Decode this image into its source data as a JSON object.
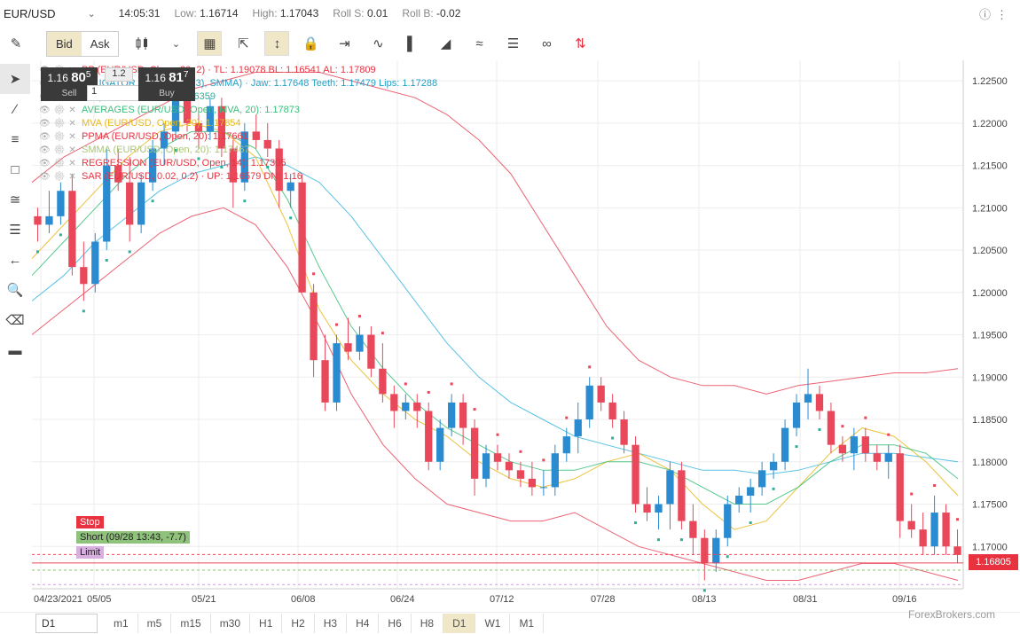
{
  "topbar": {
    "symbol": "EUR/USD",
    "time": "14:05:31",
    "low_label": "Low:",
    "low_value": "1.16714",
    "high_label": "High:",
    "high_value": "1.17043",
    "roll_s_label": "Roll S:",
    "roll_s_value": "0.01",
    "roll_b_label": "Roll B:",
    "roll_b_value": "-0.02"
  },
  "toolbar": {
    "bid_label": "Bid",
    "ask_label": "Ask"
  },
  "trade": {
    "sell_price_main": "1.16",
    "sell_price_big": "80",
    "sell_price_sup": "5",
    "sell_label": "Sell",
    "spread": "1.2",
    "qty": "1",
    "buy_price_main": "1.16",
    "buy_price_big": "81",
    "buy_price_sup": "7",
    "buy_label": "Buy"
  },
  "legend": [
    {
      "text": "PP (EUR/USD, Close, 20, 2) · TL: 1.19078 BL: 1.16541 AL: 1.17809",
      "color": "#e8323f"
    },
    {
      "text": "ALLIGATOR (13(8),8(5),5(3), SMMA) · Jaw: 1.17648 Teeth: 1.17479 Lips: 1.17288",
      "color": "#21a0c8"
    },
    {
      "text": "BB (EUR/USD, 20, 2): 1.16359",
      "color": "#2bb19a"
    },
    {
      "text": "AVERAGES (EUR/USD, Open, MVA, 20): 1.17873",
      "color": "#3ac07a"
    },
    {
      "text": "MVA (EUR/USD, Open, 20): 1.17854",
      "color": "#e7b81b"
    },
    {
      "text": "PPMA (EUR/USD, Open, 20): 1.17661",
      "color": "#e8323f"
    },
    {
      "text": "SMMA (EUR/USD, Open, 20): 1.17467",
      "color": "#a9c47b"
    },
    {
      "text": "REGRESSION (EUR/USD, Open, 14): 1.17305",
      "color": "#e8323f"
    },
    {
      "text": "SAR (EUR/USD, 0.02, 0.2) · UP: 1.16579 DN: 1.16",
      "color": "#e8323f"
    }
  ],
  "orders": {
    "stop_label": "Stop",
    "short_label": "Short (09/28 13:43, -7.7)",
    "limit_label": "Limit",
    "current_price": "1.16805"
  },
  "timeframes": {
    "selected": "D1",
    "items": [
      "m1",
      "m5",
      "m15",
      "m30",
      "H1",
      "H2",
      "H3",
      "H4",
      "H6",
      "H8",
      "D1",
      "W1",
      "M1"
    ]
  },
  "watermark": "ForexBrokers.com",
  "chart_data": {
    "type": "candlestick",
    "y_ticks": [
      "1.22500",
      "1.22000",
      "1.21500",
      "1.21000",
      "1.20500",
      "1.20000",
      "1.19500",
      "1.19000",
      "1.18500",
      "1.18000",
      "1.17500",
      "1.17000"
    ],
    "ylim": [
      1.165,
      1.227
    ],
    "x_ticks": [
      "04/23/2021",
      "05/05",
      "05/21",
      "06/08",
      "06/24",
      "07/12",
      "07/28",
      "08/13",
      "08/31",
      "09/16"
    ],
    "up_color": "#2a8bd0",
    "down_color": "#e8485a",
    "candles": [
      [
        1.209,
        1.21,
        1.206,
        1.208
      ],
      [
        1.208,
        1.212,
        1.207,
        1.209
      ],
      [
        1.209,
        1.213,
        1.208,
        1.212
      ],
      [
        1.212,
        1.214,
        1.202,
        1.203
      ],
      [
        1.203,
        1.206,
        1.199,
        1.201
      ],
      [
        1.201,
        1.207,
        1.2,
        1.206
      ],
      [
        1.206,
        1.217,
        1.205,
        1.215
      ],
      [
        1.215,
        1.217,
        1.212,
        1.213
      ],
      [
        1.213,
        1.216,
        1.206,
        1.208
      ],
      [
        1.208,
        1.214,
        1.207,
        1.213
      ],
      [
        1.213,
        1.218,
        1.212,
        1.217
      ],
      [
        1.217,
        1.22,
        1.215,
        1.219
      ],
      [
        1.219,
        1.224,
        1.218,
        1.223
      ],
      [
        1.223,
        1.224,
        1.219,
        1.22
      ],
      [
        1.22,
        1.221,
        1.217,
        1.219
      ],
      [
        1.219,
        1.223,
        1.218,
        1.222
      ],
      [
        1.222,
        1.223,
        1.216,
        1.217
      ],
      [
        1.217,
        1.218,
        1.21,
        1.213
      ],
      [
        1.213,
        1.22,
        1.212,
        1.219
      ],
      [
        1.219,
        1.221,
        1.217,
        1.218
      ],
      [
        1.218,
        1.22,
        1.216,
        1.217
      ],
      [
        1.217,
        1.218,
        1.21,
        1.212
      ],
      [
        1.212,
        1.214,
        1.21,
        1.213
      ],
      [
        1.213,
        1.214,
        1.2,
        1.2
      ],
      [
        1.2,
        1.201,
        1.19,
        1.192
      ],
      [
        1.192,
        1.195,
        1.186,
        1.187
      ],
      [
        1.187,
        1.195,
        1.186,
        1.194
      ],
      [
        1.194,
        1.197,
        1.192,
        1.193
      ],
      [
        1.193,
        1.196,
        1.192,
        1.195
      ],
      [
        1.195,
        1.196,
        1.19,
        1.191
      ],
      [
        1.191,
        1.194,
        1.187,
        1.188
      ],
      [
        1.188,
        1.189,
        1.184,
        1.186
      ],
      [
        1.186,
        1.188,
        1.185,
        1.187
      ],
      [
        1.187,
        1.188,
        1.184,
        1.186
      ],
      [
        1.186,
        1.187,
        1.179,
        1.18
      ],
      [
        1.18,
        1.185,
        1.179,
        1.184
      ],
      [
        1.184,
        1.188,
        1.183,
        1.187
      ],
      [
        1.187,
        1.188,
        1.182,
        1.184
      ],
      [
        1.184,
        1.185,
        1.176,
        1.178
      ],
      [
        1.178,
        1.182,
        1.177,
        1.181
      ],
      [
        1.181,
        1.182,
        1.179,
        1.18
      ],
      [
        1.18,
        1.181,
        1.178,
        1.179
      ],
      [
        1.179,
        1.18,
        1.177,
        1.178
      ],
      [
        1.178,
        1.18,
        1.176,
        1.177
      ],
      [
        1.177,
        1.179,
        1.176,
        1.177
      ],
      [
        1.177,
        1.182,
        1.176,
        1.181
      ],
      [
        1.181,
        1.184,
        1.18,
        1.183
      ],
      [
        1.183,
        1.187,
        1.181,
        1.185
      ],
      [
        1.185,
        1.19,
        1.184,
        1.189
      ],
      [
        1.189,
        1.19,
        1.186,
        1.187
      ],
      [
        1.187,
        1.188,
        1.184,
        1.185
      ],
      [
        1.185,
        1.186,
        1.181,
        1.182
      ],
      [
        1.182,
        1.183,
        1.174,
        1.175
      ],
      [
        1.175,
        1.177,
        1.173,
        1.174
      ],
      [
        1.174,
        1.176,
        1.172,
        1.175
      ],
      [
        1.175,
        1.18,
        1.172,
        1.179
      ],
      [
        1.179,
        1.18,
        1.172,
        1.173
      ],
      [
        1.173,
        1.175,
        1.169,
        1.171
      ],
      [
        1.171,
        1.172,
        1.166,
        1.168
      ],
      [
        1.168,
        1.172,
        1.167,
        1.171
      ],
      [
        1.171,
        1.176,
        1.17,
        1.175
      ],
      [
        1.175,
        1.177,
        1.174,
        1.176
      ],
      [
        1.176,
        1.178,
        1.174,
        1.177
      ],
      [
        1.177,
        1.18,
        1.176,
        1.179
      ],
      [
        1.179,
        1.181,
        1.178,
        1.18
      ],
      [
        1.18,
        1.185,
        1.179,
        1.184
      ],
      [
        1.184,
        1.188,
        1.183,
        1.187
      ],
      [
        1.187,
        1.191,
        1.185,
        1.188
      ],
      [
        1.188,
        1.189,
        1.185,
        1.186
      ],
      [
        1.186,
        1.187,
        1.181,
        1.182
      ],
      [
        1.182,
        1.183,
        1.18,
        1.181
      ],
      [
        1.181,
        1.184,
        1.179,
        1.183
      ],
      [
        1.183,
        1.184,
        1.18,
        1.181
      ],
      [
        1.181,
        1.182,
        1.179,
        1.18
      ],
      [
        1.18,
        1.182,
        1.178,
        1.181
      ],
      [
        1.181,
        1.182,
        1.171,
        1.173
      ],
      [
        1.173,
        1.175,
        1.171,
        1.172
      ],
      [
        1.172,
        1.174,
        1.169,
        1.17
      ],
      [
        1.17,
        1.176,
        1.169,
        1.174
      ],
      [
        1.174,
        1.175,
        1.169,
        1.17
      ],
      [
        1.17,
        1.172,
        1.168,
        1.169
      ]
    ],
    "overlays": [
      {
        "name": "bb_upper",
        "color": "#e8485a",
        "values": [
          1.213,
          1.216,
          1.218,
          1.22,
          1.222,
          1.224,
          1.225,
          1.226,
          1.226,
          1.226,
          1.225,
          1.224,
          1.223,
          1.221,
          1.218,
          1.214,
          1.208,
          1.202,
          1.196,
          1.192,
          1.19,
          1.189,
          1.189,
          1.188,
          1.189,
          1.1895,
          1.19,
          1.1905,
          1.1905,
          1.191
        ]
      },
      {
        "name": "bb_lower",
        "color": "#e8485a",
        "values": [
          1.195,
          1.198,
          1.201,
          1.204,
          1.207,
          1.209,
          1.21,
          1.208,
          1.203,
          1.196,
          1.188,
          1.182,
          1.178,
          1.175,
          1.174,
          1.173,
          1.173,
          1.174,
          1.172,
          1.17,
          1.169,
          1.168,
          1.167,
          1.166,
          1.166,
          1.167,
          1.168,
          1.168,
          1.167,
          1.166
        ]
      },
      {
        "name": "jaw",
        "color": "#3cb7e0",
        "values": [
          1.199,
          1.202,
          1.206,
          1.209,
          1.212,
          1.214,
          1.215,
          1.216,
          1.215,
          1.213,
          1.209,
          1.204,
          1.199,
          1.194,
          1.19,
          1.187,
          1.185,
          1.183,
          1.182,
          1.181,
          1.18,
          1.179,
          1.179,
          1.1785,
          1.179,
          1.18,
          1.181,
          1.181,
          1.1805,
          1.18
        ]
      },
      {
        "name": "lips",
        "color": "#e7b81b",
        "values": [
          1.204,
          1.208,
          1.212,
          1.216,
          1.219,
          1.22,
          1.219,
          1.216,
          1.208,
          1.198,
          1.192,
          1.188,
          1.185,
          1.183,
          1.18,
          1.178,
          1.177,
          1.178,
          1.18,
          1.181,
          1.179,
          1.175,
          1.172,
          1.173,
          1.177,
          1.181,
          1.184,
          1.183,
          1.18,
          1.176
        ]
      },
      {
        "name": "teeth",
        "color": "#3ac07a",
        "values": [
          1.202,
          1.206,
          1.21,
          1.214,
          1.217,
          1.219,
          1.219,
          1.217,
          1.211,
          1.203,
          1.196,
          1.191,
          1.187,
          1.184,
          1.182,
          1.18,
          1.179,
          1.179,
          1.18,
          1.18,
          1.179,
          1.177,
          1.175,
          1.175,
          1.177,
          1.18,
          1.182,
          1.182,
          1.181,
          1.178
        ]
      }
    ]
  }
}
